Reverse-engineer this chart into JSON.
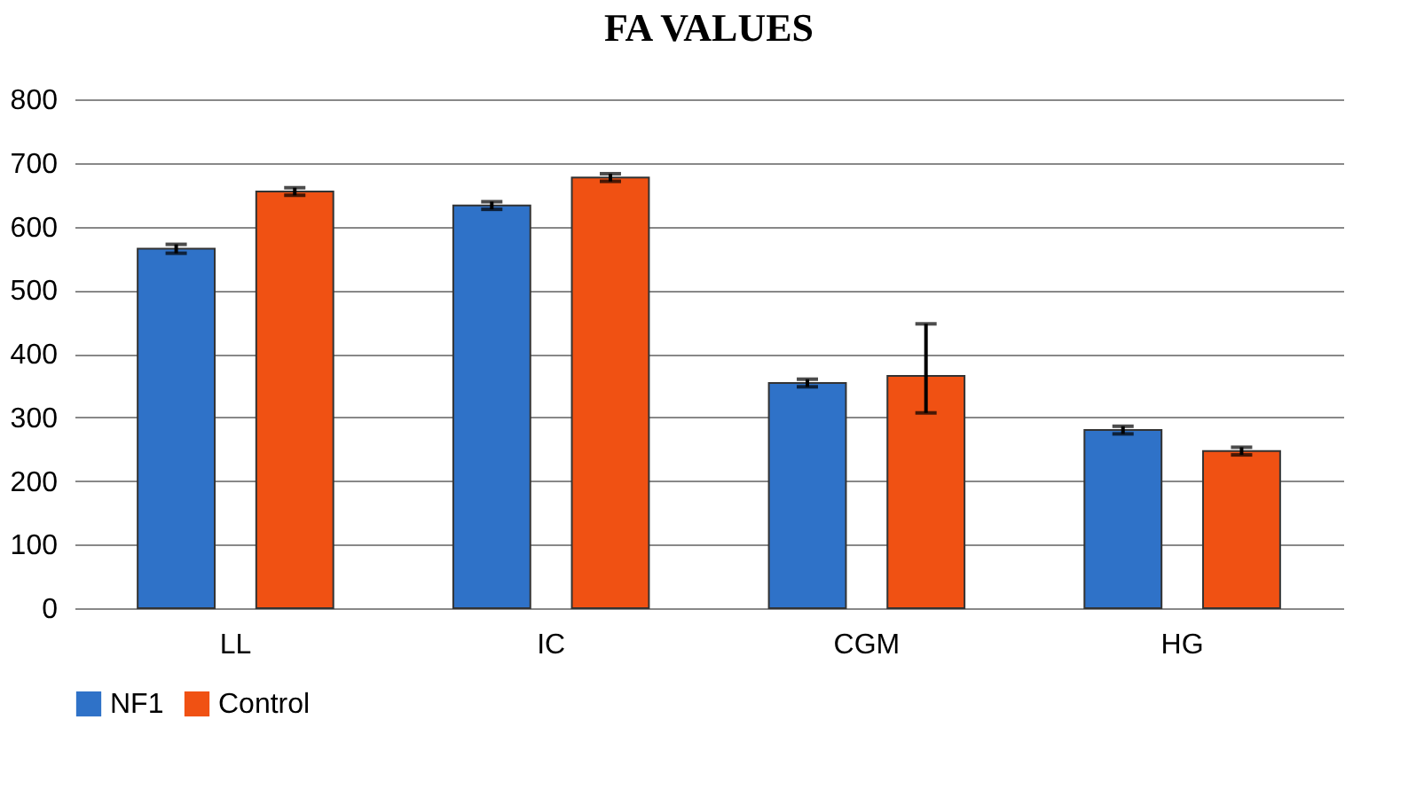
{
  "chart_data": {
    "type": "bar",
    "title": "FA VALUES",
    "categories": [
      "LL",
      "IC",
      "CGM",
      "HG"
    ],
    "series": [
      {
        "name": "NF1",
        "color": "#2f72c8",
        "values": [
          565,
          633,
          354,
          280
        ],
        "errors": [
          7,
          6,
          6,
          6
        ]
      },
      {
        "name": "Control",
        "color": "#f05113",
        "values": [
          655,
          677,
          365,
          247
        ],
        "errors": [
          6,
          6,
          [
            307,
            447
          ],
          6
        ]
      }
    ],
    "ylim": [
      0,
      800
    ],
    "yticks": [
      0,
      100,
      200,
      300,
      400,
      500,
      600,
      700,
      800
    ],
    "grid": "y",
    "legend": "bottom"
  }
}
